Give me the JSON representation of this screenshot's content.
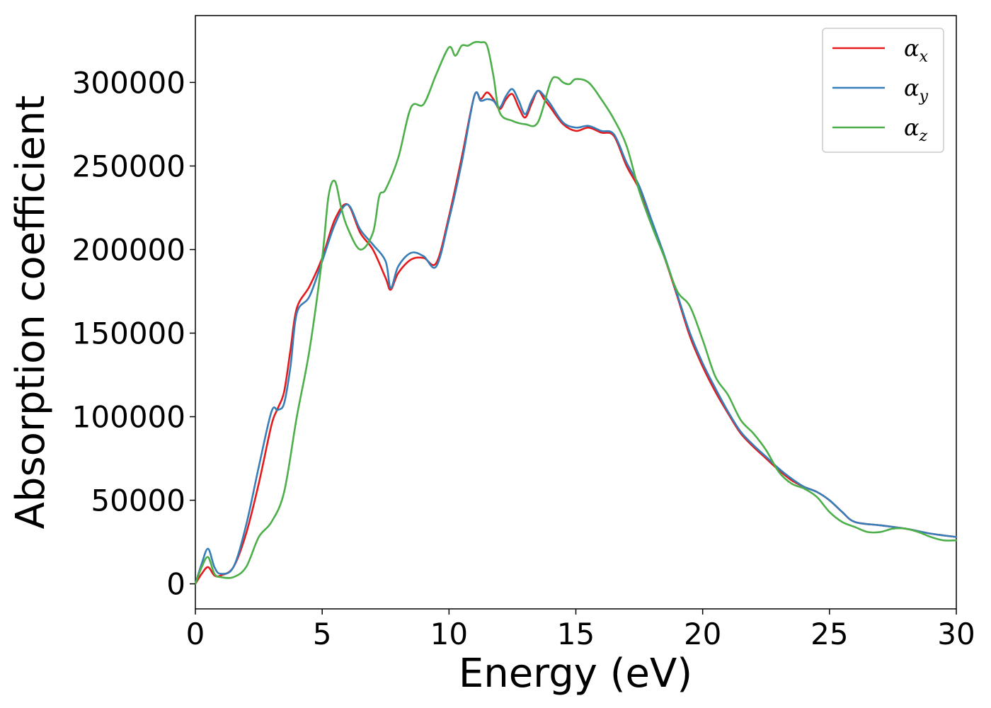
{
  "chart_data": {
    "type": "line",
    "title": "",
    "xlabel": "Energy (eV)",
    "ylabel": "Absorption coefficient",
    "xlim": [
      0,
      30
    ],
    "ylim": [
      -15000,
      340000
    ],
    "xticks": [
      0,
      5,
      10,
      15,
      20,
      25,
      30
    ],
    "xtick_labels": [
      "0",
      "5",
      "10",
      "15",
      "20",
      "25",
      "30"
    ],
    "yticks": [
      0,
      50000,
      100000,
      150000,
      200000,
      250000,
      300000
    ],
    "ytick_labels": [
      "0",
      "50000",
      "100000",
      "150000",
      "200000",
      "250000",
      "300000"
    ],
    "grid": false,
    "legend_position": "top-right",
    "series": [
      {
        "name": "α_x",
        "label_base": "α",
        "label_sub": "x",
        "color": "#e41a1c",
        "x": [
          0,
          0.25,
          0.5,
          0.75,
          1.0,
          1.5,
          2.0,
          2.5,
          3.0,
          3.25,
          3.5,
          3.75,
          4.0,
          4.5,
          5.0,
          5.5,
          6.0,
          6.5,
          7.0,
          7.5,
          7.7,
          8.0,
          8.5,
          9.0,
          9.5,
          10.0,
          10.5,
          11.0,
          11.25,
          11.5,
          11.75,
          12.0,
          12.25,
          12.5,
          12.75,
          13.0,
          13.25,
          13.5,
          13.75,
          14.0,
          14.5,
          15.0,
          15.5,
          16.0,
          16.5,
          17.0,
          17.5,
          18.0,
          18.5,
          19.0,
          19.5,
          20.0,
          20.5,
          21.0,
          21.5,
          22.0,
          22.5,
          23.0,
          23.5,
          24.0,
          24.5,
          25.0,
          25.5,
          26.0,
          27.0,
          28.0,
          29.0,
          30.0
        ],
        "y": [
          0,
          6000,
          10000,
          5000,
          5000,
          10000,
          30000,
          60000,
          95000,
          105000,
          115000,
          140000,
          165000,
          178000,
          195000,
          218000,
          227000,
          210000,
          200000,
          183000,
          176000,
          186000,
          194000,
          195000,
          192000,
          220000,
          255000,
          292000,
          290000,
          294000,
          290000,
          284000,
          290000,
          293000,
          285000,
          279000,
          287000,
          295000,
          290000,
          285000,
          275000,
          271000,
          273000,
          270000,
          268000,
          250000,
          236000,
          215000,
          195000,
          172000,
          148000,
          130000,
          115000,
          102000,
          90000,
          82000,
          75000,
          68000,
          62000,
          58000,
          55000,
          50000,
          43000,
          37000,
          35000,
          33000,
          30000,
          28000
        ]
      },
      {
        "name": "α_y",
        "label_base": "α",
        "label_sub": "y",
        "color": "#377eb8",
        "x": [
          0,
          0.25,
          0.5,
          0.75,
          1.0,
          1.5,
          2.0,
          2.5,
          3.0,
          3.25,
          3.5,
          3.75,
          4.0,
          4.5,
          5.0,
          5.5,
          6.0,
          6.5,
          7.0,
          7.5,
          7.7,
          8.0,
          8.5,
          9.0,
          9.5,
          10.0,
          10.5,
          11.0,
          11.25,
          11.5,
          11.75,
          12.0,
          12.25,
          12.5,
          12.75,
          13.0,
          13.25,
          13.5,
          13.75,
          14.0,
          14.5,
          15.0,
          15.5,
          16.0,
          16.5,
          17.0,
          17.5,
          18.0,
          18.5,
          19.0,
          19.5,
          20.0,
          20.5,
          21.0,
          21.5,
          22.0,
          22.5,
          23.0,
          23.5,
          24.0,
          24.5,
          25.0,
          25.5,
          26.0,
          27.0,
          28.0,
          29.0,
          30.0
        ],
        "y": [
          0,
          12000,
          21000,
          10000,
          6000,
          10000,
          35000,
          70000,
          103000,
          104000,
          108000,
          130000,
          162000,
          172000,
          193000,
          215000,
          227000,
          212000,
          203000,
          193000,
          177000,
          190000,
          198000,
          196000,
          190000,
          218000,
          252000,
          292000,
          289000,
          290000,
          289000,
          285000,
          292000,
          296000,
          289000,
          281000,
          289000,
          295000,
          292000,
          287000,
          276000,
          273000,
          274000,
          271000,
          269000,
          252000,
          238000,
          217000,
          196000,
          173000,
          150000,
          132000,
          117000,
          103000,
          91000,
          83000,
          76000,
          69000,
          63000,
          58000,
          55000,
          50000,
          43000,
          37000,
          35000,
          33000,
          30000,
          28000
        ]
      },
      {
        "name": "α_z",
        "label_base": "α",
        "label_sub": "z",
        "color": "#4daf4a",
        "x": [
          0,
          0.25,
          0.5,
          0.75,
          1.0,
          1.5,
          2.0,
          2.5,
          3.0,
          3.5,
          4.0,
          4.5,
          5.0,
          5.25,
          5.5,
          5.75,
          6.0,
          6.5,
          7.0,
          7.25,
          7.5,
          8.0,
          8.5,
          9.0,
          9.5,
          10.0,
          10.25,
          10.5,
          10.75,
          11.0,
          11.25,
          11.5,
          11.75,
          12.0,
          12.5,
          13.0,
          13.5,
          14.0,
          14.25,
          14.5,
          14.75,
          15.0,
          15.5,
          16.0,
          16.5,
          17.0,
          17.5,
          18.0,
          18.5,
          19.0,
          19.5,
          20.0,
          20.5,
          21.0,
          21.5,
          22.0,
          22.5,
          23.0,
          23.5,
          24.0,
          24.5,
          25.0,
          25.5,
          26.0,
          26.5,
          27.0,
          27.5,
          28.0,
          28.5,
          29.0,
          29.5,
          30.0
        ],
        "y": [
          0,
          10000,
          16000,
          6000,
          4000,
          4000,
          10000,
          28000,
          37000,
          55000,
          100000,
          140000,
          195000,
          232000,
          241000,
          225000,
          213000,
          200000,
          210000,
          232000,
          236000,
          255000,
          285000,
          287000,
          305000,
          321000,
          316000,
          322000,
          322000,
          324000,
          324000,
          322000,
          304000,
          282000,
          277000,
          275000,
          276000,
          300000,
          303000,
          300000,
          299000,
          302000,
          300000,
          290000,
          278000,
          262000,
          235000,
          214000,
          195000,
          175000,
          166000,
          146000,
          124000,
          113000,
          98000,
          90000,
          80000,
          67000,
          60000,
          57000,
          52000,
          43000,
          37000,
          34000,
          31000,
          31000,
          33000,
          33000,
          31000,
          28000,
          26000,
          26000
        ]
      }
    ]
  }
}
